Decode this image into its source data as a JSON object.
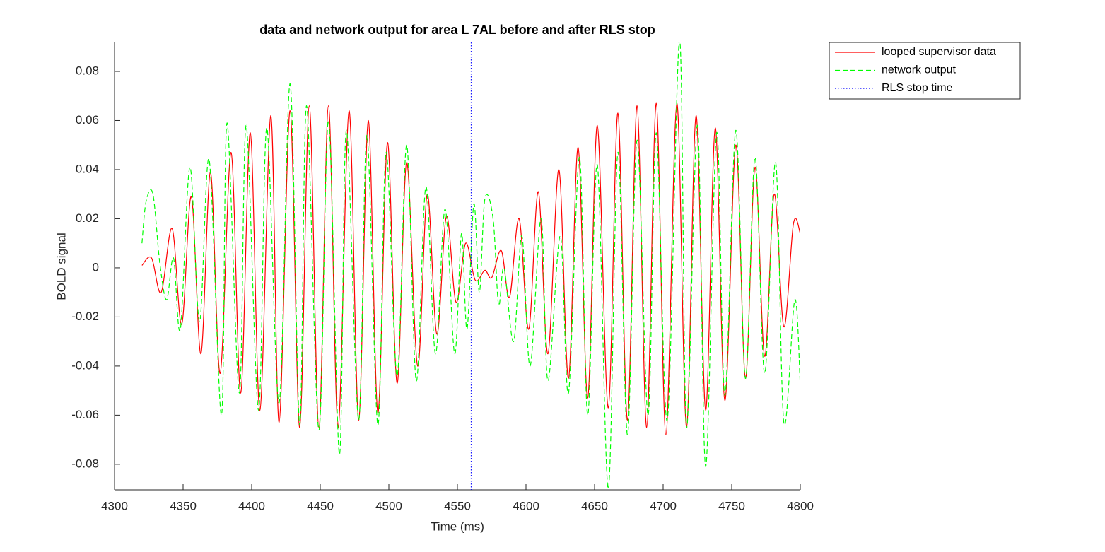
{
  "chart_data": {
    "type": "line",
    "title": "data and network output for area L 7AL before and after RLS stop",
    "xlabel": "Time (ms)",
    "ylabel": "BOLD signal",
    "xlim": [
      4300,
      4800
    ],
    "ylim": [
      -0.0904,
      0.0918
    ],
    "xticks": [
      4300,
      4350,
      4400,
      4450,
      4500,
      4550,
      4600,
      4650,
      4700,
      4750,
      4800
    ],
    "yticks": [
      -0.08,
      -0.06,
      -0.04,
      -0.02,
      0,
      0.02,
      0.04,
      0.06,
      0.08
    ],
    "grid": false,
    "legend": "outside-top-right",
    "series": [
      {
        "name": "looped supervisor data",
        "color": "#ff0000",
        "style": "solid",
        "x": [
          4320,
          4327,
          4334,
          4342,
          4349,
          4356,
          4363,
          4370,
          4377,
          4385,
          4392,
          4399,
          4406,
          4414,
          4420,
          4428,
          4435,
          4442,
          4449,
          4456,
          4463,
          4471,
          4478,
          4485,
          4492,
          4499,
          4506,
          4513,
          4521,
          4528,
          4535,
          4542,
          4549,
          4556,
          4563,
          4570,
          4575,
          4582,
          4588,
          4595,
          4602,
          4609,
          4616,
          4624,
          4631,
          4638,
          4645,
          4652,
          4660,
          4667,
          4674,
          4681,
          4688,
          4695,
          4702,
          4710,
          4717,
          4724,
          4731,
          4738,
          4745,
          4753,
          4760,
          4767,
          4774,
          4781,
          4788,
          4795,
          4800
        ],
        "values": [
          0.001,
          0.004,
          -0.01,
          0.016,
          -0.023,
          0.029,
          -0.035,
          0.039,
          -0.043,
          0.047,
          -0.051,
          0.055,
          -0.058,
          0.062,
          -0.063,
          0.064,
          -0.065,
          0.066,
          -0.065,
          0.066,
          -0.065,
          0.064,
          -0.062,
          0.06,
          -0.059,
          0.051,
          -0.047,
          0.043,
          -0.04,
          0.03,
          -0.027,
          0.021,
          -0.014,
          0.01,
          -0.005,
          -0.001,
          -0.004,
          0.007,
          -0.012,
          0.02,
          -0.025,
          0.031,
          -0.035,
          0.04,
          -0.045,
          0.049,
          -0.053,
          0.058,
          -0.057,
          0.063,
          -0.062,
          0.066,
          -0.065,
          0.067,
          -0.068,
          0.067,
          -0.065,
          0.062,
          -0.058,
          0.057,
          -0.054,
          0.05,
          -0.045,
          0.041,
          -0.036,
          0.03,
          -0.024,
          0.018,
          0.014
        ]
      },
      {
        "name": "network output",
        "color": "#00ff00",
        "style": "dashed",
        "x": [
          4320,
          4323,
          4328,
          4333,
          4338,
          4343,
          4348,
          4355,
          4362,
          4369,
          4378,
          4382,
          4391,
          4396,
          4405,
          4411,
          4420,
          4428,
          4435,
          4440,
          4449,
          4456,
          4464,
          4469,
          4478,
          4484,
          4492,
          4498,
          4506,
          4513,
          4520,
          4527,
          4534,
          4541,
          4548,
          4553,
          4557,
          4562,
          4566,
          4570,
          4576,
          4580,
          4584,
          4591,
          4597,
          4603,
          4611,
          4616,
          4625,
          4631,
          4639,
          4645,
          4652,
          4660,
          4667,
          4674,
          4681,
          4689,
          4695,
          4703,
          4712,
          4717,
          4725,
          4731,
          4739,
          4745,
          4753,
          4760,
          4767,
          4774,
          4782,
          4788,
          4796,
          4800
        ],
        "values": [
          0.01,
          0.027,
          0.03,
          0.002,
          -0.013,
          0.004,
          -0.025,
          0.041,
          -0.022,
          0.044,
          -0.06,
          0.059,
          -0.051,
          0.058,
          -0.058,
          0.057,
          -0.055,
          0.075,
          -0.064,
          0.066,
          -0.066,
          0.06,
          -0.076,
          0.056,
          -0.062,
          0.054,
          -0.064,
          0.047,
          -0.044,
          0.05,
          -0.046,
          0.033,
          -0.035,
          0.024,
          -0.035,
          0.014,
          -0.025,
          0.026,
          -0.01,
          0.028,
          0.02,
          -0.015,
          0.0,
          -0.03,
          0.013,
          -0.04,
          0.02,
          -0.046,
          0.013,
          -0.051,
          0.045,
          -0.06,
          0.042,
          -0.09,
          0.047,
          -0.068,
          0.052,
          -0.06,
          0.055,
          -0.062,
          0.093,
          -0.065,
          0.058,
          -0.081,
          0.055,
          -0.052,
          0.056,
          -0.045,
          0.045,
          -0.043,
          0.043,
          -0.063,
          -0.013,
          -0.048
        ]
      }
    ],
    "stop_line": {
      "name": "RLS stop time",
      "x": 4560,
      "color": "#0000ff",
      "style": "dotted"
    }
  }
}
